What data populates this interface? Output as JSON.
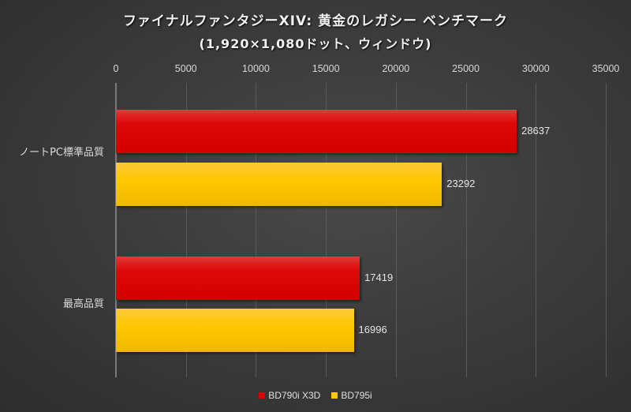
{
  "chart_data": {
    "type": "bar",
    "orientation": "horizontal",
    "title": "ファイナルファンタジーXIV: 黄金のレガシー ベンチマーク",
    "subtitle": "(1,920×1,080ドット、ウィンドウ)",
    "xlabel": "",
    "ylabel": "",
    "xlim": [
      0,
      35000
    ],
    "x_ticks": [
      "0",
      "5000",
      "10000",
      "15000",
      "20000",
      "25000",
      "30000",
      "35000"
    ],
    "x_axis_position": "top",
    "grid": true,
    "legend_position": "bottom",
    "categories": [
      "ノートPC標準品質",
      "最高品質"
    ],
    "series": [
      {
        "name": "BD790i X3D",
        "color": "#dd0000",
        "values": [
          28637,
          17419
        ]
      },
      {
        "name": "BD795i",
        "color": "#ffc800",
        "values": [
          23292,
          16996
        ]
      }
    ],
    "data_labels": {
      "ノートPC標準品質": {
        "BD790i X3D": "28637",
        "BD795i": "23292"
      },
      "最高品質": {
        "BD790i X3D": "17419",
        "BD795i": "16996"
      }
    }
  },
  "labels": {
    "cat0": "ノートPC標準品質",
    "cat1": "最高品質",
    "v00": "28637",
    "v01": "23292",
    "v10": "17419",
    "v11": "16996",
    "legend0": "BD790i X3D",
    "legend1": "BD795i"
  }
}
